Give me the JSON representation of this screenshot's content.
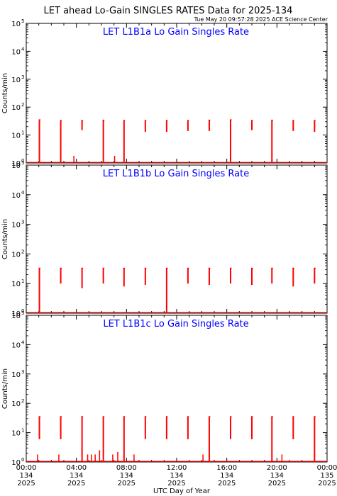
{
  "header": {
    "title": "LET ahead Lo-Gain SINGLES RATES Data for 2025-134",
    "timestamp": "Tue May 20 09:57:28 2025 ACE Science Center"
  },
  "x_axis_label": "UTC Day of Year",
  "colors": {
    "data": "#ff0000",
    "panel_title": "#0000ff",
    "axis": "#000000",
    "background": "#ffffff"
  },
  "chart_data": [
    {
      "type": "line",
      "title": "LET L1B1a Lo Gain Singles Rate",
      "ylabel": "Counts/min",
      "yscale": "log",
      "ylim": [
        1,
        100000
      ],
      "xlim": [
        0,
        24
      ],
      "x_units": "hours UTC on day 134",
      "yticks": [
        1,
        10,
        100,
        1000,
        10000,
        100000
      ],
      "ytick_labels": [
        [
          "10",
          "0"
        ],
        [
          "10",
          "1"
        ],
        [
          "10",
          "2"
        ],
        [
          "10",
          "3"
        ],
        [
          "10",
          "4"
        ],
        [
          "10",
          "5"
        ]
      ],
      "spikes": [
        {
          "x": 1.05,
          "y_top": 35,
          "y_bottom": 1
        },
        {
          "x": 2.75,
          "y_top": 33,
          "y_bottom": 1
        },
        {
          "x": 4.45,
          "y_top": 33,
          "y_bottom": 15
        },
        {
          "x": 6.15,
          "y_top": 34,
          "y_bottom": 1
        },
        {
          "x": 7.8,
          "y_top": 33,
          "y_bottom": 1
        },
        {
          "x": 9.5,
          "y_top": 33,
          "y_bottom": 13
        },
        {
          "x": 11.2,
          "y_top": 33,
          "y_bottom": 13
        },
        {
          "x": 12.9,
          "y_top": 33,
          "y_bottom": 14
        },
        {
          "x": 14.6,
          "y_top": 34,
          "y_bottom": 14
        },
        {
          "x": 16.3,
          "y_top": 35,
          "y_bottom": 1
        },
        {
          "x": 18.0,
          "y_top": 33,
          "y_bottom": 15
        },
        {
          "x": 19.6,
          "y_top": 34,
          "y_bottom": 1
        },
        {
          "x": 21.3,
          "y_top": 33,
          "y_bottom": 14
        },
        {
          "x": 23.0,
          "y_top": 33,
          "y_bottom": 13
        },
        {
          "x": 24.6,
          "y_top": 33,
          "y_bottom": 13
        }
      ],
      "low_bars": [
        {
          "x": 3.8,
          "y": 1.8
        },
        {
          "x": 7.05,
          "y": 1.8
        }
      ]
    },
    {
      "type": "line",
      "title": "LET L1B1b Lo Gain Singles Rate",
      "ylabel": "Counts/min",
      "yscale": "log",
      "ylim": [
        1,
        100000
      ],
      "xlim": [
        0,
        24
      ],
      "x_units": "hours UTC on day 134",
      "yticks": [
        1,
        10,
        100,
        1000,
        10000,
        100000
      ],
      "ytick_labels": [
        [
          "10",
          "0"
        ],
        [
          "10",
          "1"
        ],
        [
          "10",
          "2"
        ],
        [
          "10",
          "3"
        ],
        [
          "10",
          "4"
        ],
        [
          "10",
          "5"
        ]
      ],
      "spikes": [
        {
          "x": 1.05,
          "y_top": 33,
          "y_bottom": 1
        },
        {
          "x": 2.75,
          "y_top": 33,
          "y_bottom": 10
        },
        {
          "x": 4.45,
          "y_top": 33,
          "y_bottom": 7
        },
        {
          "x": 6.15,
          "y_top": 33,
          "y_bottom": 10
        },
        {
          "x": 7.8,
          "y_top": 33,
          "y_bottom": 8
        },
        {
          "x": 9.5,
          "y_top": 33,
          "y_bottom": 9
        },
        {
          "x": 11.2,
          "y_top": 33,
          "y_bottom": 1
        },
        {
          "x": 12.9,
          "y_top": 33,
          "y_bottom": 10
        },
        {
          "x": 14.6,
          "y_top": 33,
          "y_bottom": 9
        },
        {
          "x": 16.3,
          "y_top": 33,
          "y_bottom": 10
        },
        {
          "x": 18.0,
          "y_top": 33,
          "y_bottom": 9
        },
        {
          "x": 19.6,
          "y_top": 33,
          "y_bottom": 10
        },
        {
          "x": 21.3,
          "y_top": 33,
          "y_bottom": 8
        },
        {
          "x": 23.0,
          "y_top": 33,
          "y_bottom": 10
        },
        {
          "x": 24.6,
          "y_top": 33,
          "y_bottom": 9
        }
      ],
      "low_bars": []
    },
    {
      "type": "line",
      "title": "LET L1B1c Lo Gain Singles Rate",
      "ylabel": "Counts/min",
      "yscale": "log",
      "ylim": [
        1,
        100000
      ],
      "xlim": [
        0,
        24
      ],
      "x_units": "hours UTC on day 134",
      "yticks": [
        1,
        10,
        100,
        1000,
        10000,
        100000
      ],
      "ytick_labels": [
        [
          "10",
          "0"
        ],
        [
          "10",
          "1"
        ],
        [
          "10",
          "2"
        ],
        [
          "10",
          "3"
        ],
        [
          "10",
          "4"
        ],
        [
          "10",
          "5"
        ]
      ],
      "spikes": [
        {
          "x": 1.05,
          "y_top": 35,
          "y_bottom": 6
        },
        {
          "x": 2.75,
          "y_top": 35,
          "y_bottom": 6
        },
        {
          "x": 4.45,
          "y_top": 35,
          "y_bottom": 1
        },
        {
          "x": 6.15,
          "y_top": 35,
          "y_bottom": 1
        },
        {
          "x": 7.8,
          "y_top": 35,
          "y_bottom": 1
        },
        {
          "x": 9.5,
          "y_top": 35,
          "y_bottom": 6
        },
        {
          "x": 11.2,
          "y_top": 35,
          "y_bottom": 6
        },
        {
          "x": 12.9,
          "y_top": 35,
          "y_bottom": 6
        },
        {
          "x": 14.6,
          "y_top": 35,
          "y_bottom": 1
        },
        {
          "x": 16.3,
          "y_top": 35,
          "y_bottom": 6
        },
        {
          "x": 18.0,
          "y_top": 35,
          "y_bottom": 6
        },
        {
          "x": 19.6,
          "y_top": 35,
          "y_bottom": 1
        },
        {
          "x": 21.3,
          "y_top": 35,
          "y_bottom": 6
        },
        {
          "x": 23.0,
          "y_top": 35,
          "y_bottom": 1
        },
        {
          "x": 24.6,
          "y_top": 35,
          "y_bottom": 6
        }
      ],
      "low_bars": [
        {
          "x": 0.9,
          "y": 1.8
        },
        {
          "x": 2.6,
          "y": 1.8
        },
        {
          "x": 4.9,
          "y": 1.8
        },
        {
          "x": 5.2,
          "y": 1.8
        },
        {
          "x": 5.5,
          "y": 1.8
        },
        {
          "x": 5.85,
          "y": 2.5
        },
        {
          "x": 6.9,
          "y": 1.8
        },
        {
          "x": 7.3,
          "y": 2.2
        },
        {
          "x": 8.6,
          "y": 1.8
        },
        {
          "x": 14.1,
          "y": 1.8
        },
        {
          "x": 20.4,
          "y": 1.8
        }
      ]
    }
  ],
  "x_ticks": [
    {
      "hours": 0,
      "time": "00:00",
      "doy": "134",
      "year": "2025"
    },
    {
      "hours": 4,
      "time": "04:00",
      "doy": "134",
      "year": "2025"
    },
    {
      "hours": 8,
      "time": "08:00",
      "doy": "134",
      "year": "2025"
    },
    {
      "hours": 12,
      "time": "12:00",
      "doy": "134",
      "year": "2025"
    },
    {
      "hours": 16,
      "time": "16:00",
      "doy": "134",
      "year": "2025"
    },
    {
      "hours": 20,
      "time": "20:00",
      "doy": "134",
      "year": "2025"
    },
    {
      "hours": 24,
      "time": "00:00",
      "doy": "135",
      "year": "2025"
    }
  ]
}
